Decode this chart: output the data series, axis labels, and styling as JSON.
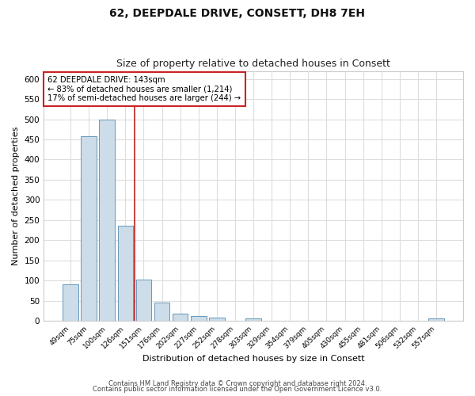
{
  "title": "62, DEEPDALE DRIVE, CONSETT, DH8 7EH",
  "subtitle": "Size of property relative to detached houses in Consett",
  "xlabel": "Distribution of detached houses by size in Consett",
  "ylabel": "Number of detached properties",
  "bar_labels": [
    "49sqm",
    "75sqm",
    "100sqm",
    "126sqm",
    "151sqm",
    "176sqm",
    "202sqm",
    "227sqm",
    "252sqm",
    "278sqm",
    "303sqm",
    "329sqm",
    "354sqm",
    "379sqm",
    "405sqm",
    "430sqm",
    "455sqm",
    "481sqm",
    "506sqm",
    "532sqm",
    "557sqm"
  ],
  "bar_values": [
    90,
    457,
    500,
    235,
    103,
    46,
    18,
    12,
    8,
    0,
    5,
    0,
    0,
    0,
    0,
    0,
    0,
    0,
    0,
    0,
    5
  ],
  "bar_color": "#ccdce8",
  "bar_edge_color": "#6699bb",
  "vline_after_index": 3,
  "vline_color": "#bb2222",
  "ylim": [
    0,
    620
  ],
  "yticks": [
    0,
    50,
    100,
    150,
    200,
    250,
    300,
    350,
    400,
    450,
    500,
    550,
    600
  ],
  "annotation_box_text": "62 DEEPDALE DRIVE: 143sqm\n← 83% of detached houses are smaller (1,214)\n17% of semi-detached houses are larger (244) →",
  "annotation_box_color": "#cc2222",
  "footer_line1": "Contains HM Land Registry data © Crown copyright and database right 2024.",
  "footer_line2": "Contains public sector information licensed under the Open Government Licence v3.0.",
  "bg_color": "#ffffff",
  "plot_bg_color": "#ffffff",
  "grid_color": "#dddddd",
  "title_fontsize": 10,
  "subtitle_fontsize": 9
}
